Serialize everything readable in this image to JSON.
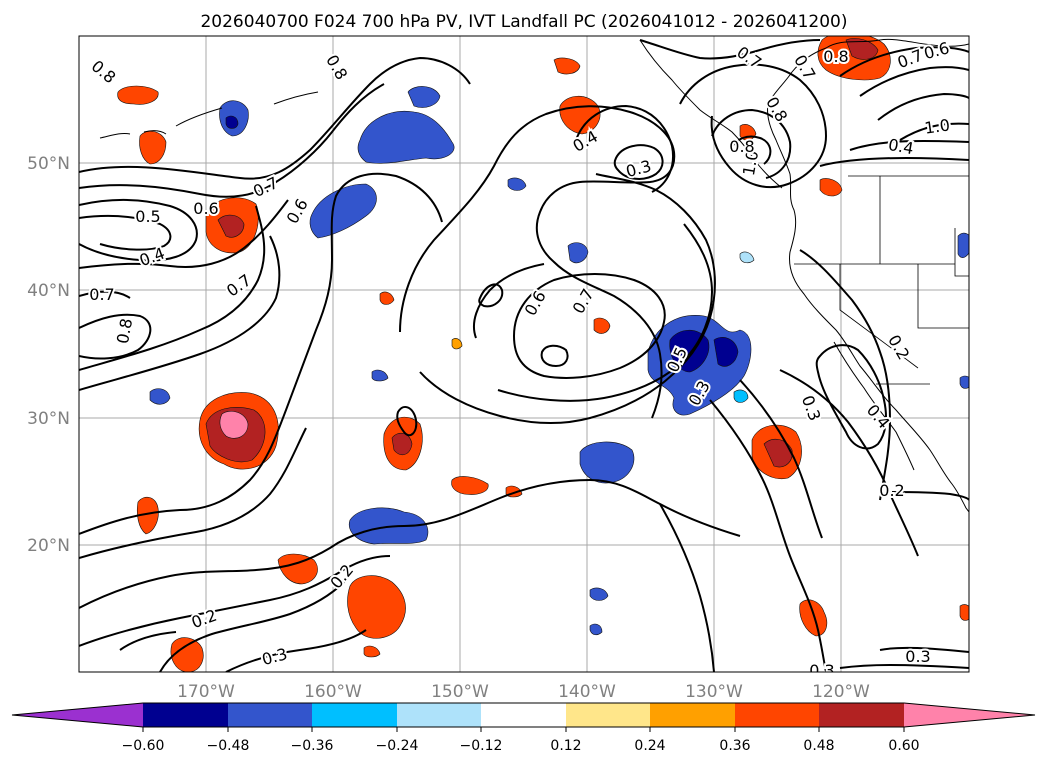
{
  "title": "2026040700 F024 700 hPa PV, IVT Landfall PC (2026041012 - 2026041200)",
  "map": {
    "lon_labels": [
      "170°W",
      "160°W",
      "150°W",
      "140°W",
      "130°W",
      "120°W"
    ],
    "lat_labels": [
      "50°N",
      "40°N",
      "30°N",
      "20°N"
    ]
  },
  "contour_labels": [
    {
      "text": "0.8"
    },
    {
      "text": "0.8"
    },
    {
      "text": "0.7"
    },
    {
      "text": "0.6"
    },
    {
      "text": "0.5"
    },
    {
      "text": "0.4"
    },
    {
      "text": "0.7"
    },
    {
      "text": "0.8"
    },
    {
      "text": "0.7"
    },
    {
      "text": "0.6"
    },
    {
      "text": "0.4"
    },
    {
      "text": "0.3"
    },
    {
      "text": "0.6"
    },
    {
      "text": "0.7"
    },
    {
      "text": "0.5"
    },
    {
      "text": "0.3"
    },
    {
      "text": "0.7"
    },
    {
      "text": "0.8"
    },
    {
      "text": "0.7"
    },
    {
      "text": "0.8"
    },
    {
      "text": "1.0"
    },
    {
      "text": "0.8"
    },
    {
      "text": "0.7"
    },
    {
      "text": "0.6"
    },
    {
      "text": "1.0"
    },
    {
      "text": "0.4"
    },
    {
      "text": "0.2"
    },
    {
      "text": "0.3"
    },
    {
      "text": "0.4"
    },
    {
      "text": "0.2"
    },
    {
      "text": "0.2"
    },
    {
      "text": "0.2"
    },
    {
      "text": "0.3"
    },
    {
      "text": "0.3"
    },
    {
      "text": "0.3"
    }
  ],
  "colorbar": {
    "colors": [
      "#9b30d0",
      "#000090",
      "#3355cc",
      "#00bfff",
      "#aee2fa",
      "#ffffff",
      "#ffe68a",
      "#ffa000",
      "#ff4500",
      "#b22222",
      "#ff82aa"
    ],
    "tick_labels": [
      "−0.60",
      "−0.48",
      "−0.36",
      "−0.24",
      "−0.12",
      "0.12",
      "0.24",
      "0.36",
      "0.48",
      "0.60"
    ]
  }
}
